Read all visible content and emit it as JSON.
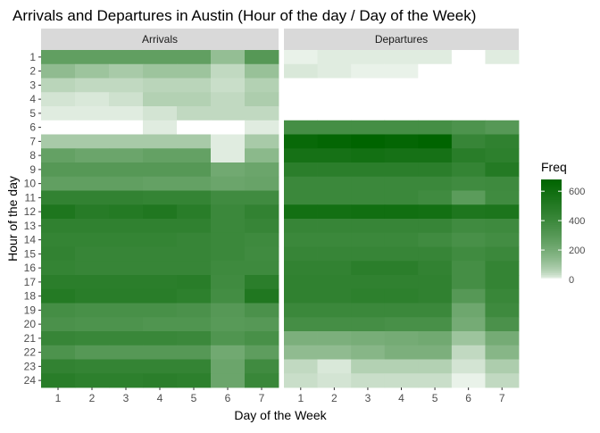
{
  "chart_data": {
    "type": "heatmap",
    "title": "Arrivals and Departures in Austin (Hour of the day / Day of the Week)",
    "xlabel": "Day of the Week",
    "ylabel": "Hour of the day",
    "x_categories": [
      "1",
      "2",
      "3",
      "4",
      "5",
      "6",
      "7"
    ],
    "y_categories": [
      "1",
      "2",
      "3",
      "4",
      "5",
      "6",
      "7",
      "8",
      "9",
      "10",
      "11",
      "12",
      "13",
      "14",
      "15",
      "16",
      "17",
      "18",
      "19",
      "20",
      "21",
      "22",
      "23",
      "24"
    ],
    "legend": {
      "title": "Freq",
      "ticks": [
        0,
        200,
        400,
        600
      ],
      "range": [
        0,
        680
      ],
      "low_color": "#ffffff",
      "high_color": "#006400",
      "placement": "right"
    },
    "panels": [
      {
        "name": "Arrivals",
        "values": [
          [
            260,
            260,
            260,
            260,
            260,
            120,
            300
          ],
          [
            130,
            100,
            80,
            100,
            100,
            40,
            110
          ],
          [
            50,
            40,
            40,
            50,
            50,
            30,
            60
          ],
          [
            20,
            15,
            25,
            60,
            60,
            40,
            70
          ],
          [
            10,
            10,
            10,
            20,
            40,
            40,
            40
          ],
          [
            0,
            0,
            0,
            10,
            0,
            0,
            10
          ],
          [
            80,
            80,
            80,
            80,
            80,
            10,
            80
          ],
          [
            250,
            230,
            230,
            250,
            250,
            10,
            140
          ],
          [
            300,
            300,
            300,
            300,
            300,
            210,
            230
          ],
          [
            260,
            260,
            260,
            250,
            250,
            230,
            240
          ],
          [
            440,
            440,
            440,
            430,
            430,
            380,
            380
          ],
          [
            530,
            490,
            500,
            520,
            480,
            400,
            440
          ],
          [
            450,
            450,
            450,
            450,
            450,
            400,
            420
          ],
          [
            430,
            430,
            430,
            430,
            420,
            400,
            390
          ],
          [
            440,
            420,
            420,
            420,
            420,
            400,
            380
          ],
          [
            430,
            420,
            420,
            420,
            420,
            390,
            390
          ],
          [
            470,
            470,
            470,
            470,
            480,
            380,
            470
          ],
          [
            500,
            480,
            480,
            480,
            460,
            370,
            520
          ],
          [
            360,
            350,
            350,
            350,
            340,
            300,
            340
          ],
          [
            340,
            330,
            330,
            320,
            320,
            290,
            300
          ],
          [
            420,
            410,
            410,
            410,
            400,
            320,
            350
          ],
          [
            330,
            300,
            300,
            300,
            300,
            210,
            270
          ],
          [
            440,
            430,
            430,
            430,
            430,
            230,
            380
          ],
          [
            480,
            460,
            460,
            470,
            460,
            230,
            410
          ]
        ]
      },
      {
        "name": "Departures",
        "values": [
          [
            5,
            10,
            10,
            10,
            10,
            0,
            10
          ],
          [
            15,
            10,
            5,
            5,
            0,
            0,
            0
          ],
          [
            0,
            0,
            0,
            0,
            0,
            0,
            0
          ],
          [
            0,
            0,
            0,
            0,
            0,
            0,
            0
          ],
          [
            0,
            0,
            0,
            0,
            0,
            0,
            0
          ],
          [
            360,
            360,
            360,
            360,
            360,
            330,
            300
          ],
          [
            640,
            660,
            680,
            660,
            680,
            420,
            450
          ],
          [
            570,
            570,
            580,
            570,
            570,
            480,
            460
          ],
          [
            470,
            470,
            470,
            470,
            470,
            430,
            500
          ],
          [
            400,
            400,
            400,
            400,
            400,
            380,
            390
          ],
          [
            400,
            400,
            400,
            400,
            380,
            280,
            380
          ],
          [
            580,
            580,
            590,
            590,
            580,
            530,
            540
          ],
          [
            420,
            420,
            420,
            420,
            420,
            380,
            390
          ],
          [
            400,
            400,
            400,
            400,
            380,
            350,
            370
          ],
          [
            420,
            420,
            420,
            420,
            420,
            380,
            400
          ],
          [
            440,
            440,
            470,
            470,
            440,
            360,
            430
          ],
          [
            450,
            450,
            450,
            450,
            450,
            360,
            430
          ],
          [
            450,
            450,
            460,
            460,
            450,
            300,
            410
          ],
          [
            400,
            400,
            400,
            400,
            400,
            220,
            390
          ],
          [
            360,
            360,
            360,
            350,
            350,
            200,
            340
          ],
          [
            180,
            180,
            190,
            200,
            210,
            100,
            200
          ],
          [
            130,
            130,
            150,
            180,
            180,
            40,
            150
          ],
          [
            40,
            15,
            60,
            60,
            60,
            20,
            70
          ],
          [
            30,
            20,
            30,
            30,
            30,
            5,
            40
          ]
        ]
      }
    ]
  }
}
